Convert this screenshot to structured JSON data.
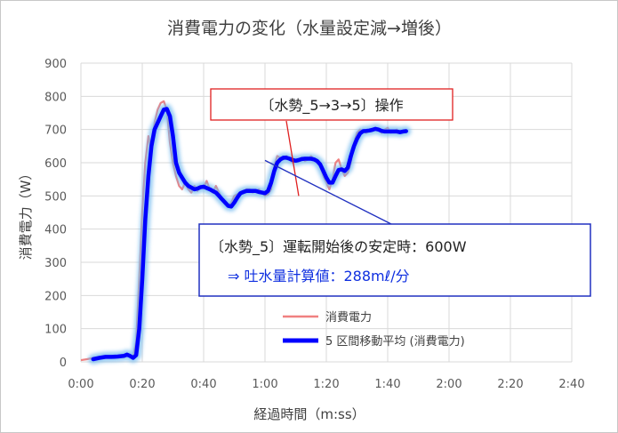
{
  "chart_data": {
    "type": "line",
    "title": "消費電力の変化（水量設定減→増後）",
    "xlabel": "経過時間（m:ss）",
    "ylabel": "消費電力（W）",
    "x_unit": "seconds",
    "xlim": [
      0,
      160
    ],
    "ylim": [
      0,
      900
    ],
    "x_ticks": [
      0,
      20,
      40,
      60,
      80,
      100,
      120,
      140,
      160
    ],
    "x_tick_labels": [
      "0:00",
      "0:20",
      "0:40",
      "1:00",
      "1:20",
      "1:40",
      "2:00",
      "2:20",
      "2:40"
    ],
    "y_ticks": [
      0,
      100,
      200,
      300,
      400,
      500,
      600,
      700,
      800,
      900
    ],
    "y_tick_labels": [
      "0",
      "100",
      "200",
      "300",
      "400",
      "500",
      "600",
      "700",
      "800",
      "900"
    ],
    "grid": true,
    "legend_position": "lower-right",
    "series": [
      {
        "name": "消費電力",
        "color": "#f08080",
        "points": [
          [
            0,
            5
          ],
          [
            2,
            8
          ],
          [
            4,
            12
          ],
          [
            6,
            14
          ],
          [
            8,
            15
          ],
          [
            10,
            16
          ],
          [
            12,
            18
          ],
          [
            14,
            20
          ],
          [
            15,
            22
          ],
          [
            16,
            18
          ],
          [
            17,
            15
          ],
          [
            18,
            60
          ],
          [
            19,
            250
          ],
          [
            20,
            450
          ],
          [
            21,
            600
          ],
          [
            22,
            680
          ],
          [
            23,
            640
          ],
          [
            24,
            720
          ],
          [
            25,
            760
          ],
          [
            26,
            780
          ],
          [
            27,
            785
          ],
          [
            28,
            760
          ],
          [
            29,
            660
          ],
          [
            30,
            600
          ],
          [
            31,
            560
          ],
          [
            32,
            530
          ],
          [
            33,
            520
          ],
          [
            34,
            540
          ],
          [
            35,
            520
          ],
          [
            36,
            510
          ],
          [
            37,
            530
          ],
          [
            38,
            515
          ],
          [
            39,
            530
          ],
          [
            40,
            525
          ],
          [
            41,
            545
          ],
          [
            42,
            520
          ],
          [
            43,
            510
          ],
          [
            44,
            530
          ],
          [
            45,
            510
          ],
          [
            46,
            490
          ],
          [
            47,
            475
          ],
          [
            48,
            470
          ],
          [
            49,
            480
          ],
          [
            50,
            500
          ],
          [
            51,
            505
          ],
          [
            52,
            510
          ],
          [
            53,
            515
          ],
          [
            54,
            520
          ],
          [
            55,
            520
          ],
          [
            56,
            510
          ],
          [
            57,
            515
          ],
          [
            58,
            520
          ],
          [
            59,
            510
          ],
          [
            60,
            500
          ],
          [
            61,
            505
          ],
          [
            62,
            520
          ],
          [
            63,
            590
          ],
          [
            64,
            620
          ],
          [
            65,
            615
          ],
          [
            66,
            610
          ],
          [
            67,
            620
          ],
          [
            68,
            610
          ],
          [
            69,
            600
          ],
          [
            70,
            605
          ],
          [
            71,
            610
          ],
          [
            72,
            615
          ],
          [
            73,
            605
          ],
          [
            74,
            610
          ],
          [
            75,
            620
          ],
          [
            76,
            610
          ],
          [
            77,
            600
          ],
          [
            78,
            590
          ],
          [
            79,
            560
          ],
          [
            80,
            540
          ],
          [
            81,
            520
          ],
          [
            82,
            550
          ],
          [
            83,
            600
          ],
          [
            84,
            610
          ],
          [
            85,
            580
          ],
          [
            86,
            560
          ],
          [
            87,
            570
          ],
          [
            88,
            600
          ],
          [
            89,
            660
          ],
          [
            90,
            690
          ],
          [
            91,
            700
          ],
          [
            92,
            695
          ],
          [
            93,
            690
          ],
          [
            94,
            695
          ],
          [
            95,
            700
          ],
          [
            96,
            705
          ],
          [
            97,
            700
          ],
          [
            98,
            690
          ],
          [
            99,
            700
          ],
          [
            100,
            705
          ],
          [
            101,
            690
          ],
          [
            102,
            695
          ],
          [
            103,
            700
          ],
          [
            104,
            690
          ],
          [
            105,
            695
          ],
          [
            106,
            700
          ]
        ]
      },
      {
        "name": "5 区間移動平均 (消費電力)",
        "color": "#0000ff",
        "points": [
          [
            4,
            8
          ],
          [
            6,
            12
          ],
          [
            8,
            15
          ],
          [
            10,
            15
          ],
          [
            12,
            16
          ],
          [
            14,
            18
          ],
          [
            15,
            22
          ],
          [
            16,
            18
          ],
          [
            17,
            12
          ],
          [
            18,
            20
          ],
          [
            19,
            100
          ],
          [
            20,
            250
          ],
          [
            21,
            430
          ],
          [
            22,
            560
          ],
          [
            23,
            650
          ],
          [
            24,
            700
          ],
          [
            25,
            720
          ],
          [
            26,
            740
          ],
          [
            27,
            760
          ],
          [
            28,
            762
          ],
          [
            29,
            740
          ],
          [
            30,
            680
          ],
          [
            31,
            600
          ],
          [
            32,
            570
          ],
          [
            33,
            555
          ],
          [
            34,
            540
          ],
          [
            35,
            530
          ],
          [
            36,
            525
          ],
          [
            37,
            520
          ],
          [
            38,
            522
          ],
          [
            39,
            526
          ],
          [
            40,
            528
          ],
          [
            41,
            524
          ],
          [
            42,
            520
          ],
          [
            43,
            515
          ],
          [
            44,
            510
          ],
          [
            45,
            500
          ],
          [
            46,
            490
          ],
          [
            47,
            480
          ],
          [
            48,
            470
          ],
          [
            49,
            468
          ],
          [
            50,
            480
          ],
          [
            51,
            495
          ],
          [
            52,
            508
          ],
          [
            53,
            512
          ],
          [
            54,
            515
          ],
          [
            55,
            515
          ],
          [
            56,
            515
          ],
          [
            57,
            515
          ],
          [
            58,
            512
          ],
          [
            59,
            510
          ],
          [
            60,
            508
          ],
          [
            61,
            515
          ],
          [
            62,
            540
          ],
          [
            63,
            575
          ],
          [
            64,
            600
          ],
          [
            65,
            610
          ],
          [
            66,
            615
          ],
          [
            67,
            615
          ],
          [
            68,
            612
          ],
          [
            69,
            608
          ],
          [
            70,
            606
          ],
          [
            71,
            608
          ],
          [
            72,
            611
          ],
          [
            73,
            612
          ],
          [
            74,
            612
          ],
          [
            75,
            612
          ],
          [
            76,
            610
          ],
          [
            77,
            605
          ],
          [
            78,
            595
          ],
          [
            79,
            575
          ],
          [
            80,
            555
          ],
          [
            81,
            540
          ],
          [
            82,
            540
          ],
          [
            83,
            560
          ],
          [
            84,
            578
          ],
          [
            85,
            580
          ],
          [
            86,
            575
          ],
          [
            87,
            585
          ],
          [
            88,
            620
          ],
          [
            89,
            650
          ],
          [
            90,
            672
          ],
          [
            91,
            688
          ],
          [
            92,
            695
          ],
          [
            93,
            696
          ],
          [
            94,
            697
          ],
          [
            95,
            699
          ],
          [
            96,
            702
          ],
          [
            97,
            700
          ],
          [
            98,
            696
          ],
          [
            99,
            694
          ],
          [
            100,
            694
          ],
          [
            101,
            694
          ],
          [
            102,
            694
          ],
          [
            103,
            694
          ],
          [
            104,
            692
          ],
          [
            105,
            694
          ],
          [
            106,
            695
          ]
        ]
      }
    ],
    "annotations": [
      {
        "text": "〔水勢_5→3→5〕操作",
        "border_color": "#e02020",
        "arrow_to": [
          71,
          500
        ]
      },
      {
        "lines": [
          "〔水勢_5〕運転開始後の安定時：600W",
          "⇒ 吐水量計算値：288mℓ/分"
        ],
        "border_color": "#2030c0",
        "arrow_to": [
          60,
          607
        ]
      }
    ]
  }
}
